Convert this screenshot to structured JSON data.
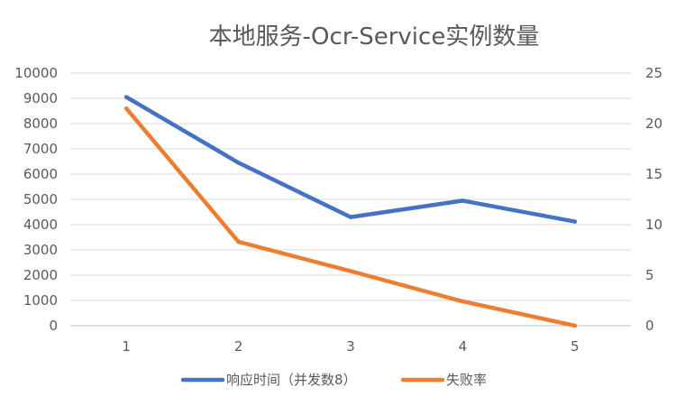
{
  "chart_data": {
    "type": "line",
    "title": "本地服务-Ocr-Service实例数量",
    "categories": [
      "1",
      "2",
      "3",
      "4",
      "5"
    ],
    "y_left": {
      "min": 0,
      "max": 10000,
      "step": 1000,
      "ticks": [
        "0",
        "1000",
        "2000",
        "3000",
        "4000",
        "5000",
        "6000",
        "7000",
        "8000",
        "9000",
        "10000"
      ]
    },
    "y_right": {
      "min": 0,
      "max": 25,
      "step": 5,
      "ticks": [
        "0",
        "5",
        "10",
        "15",
        "20",
        "25"
      ]
    },
    "series": [
      {
        "name": "响应时间（并发数8）",
        "axis": "left",
        "color": "#4472C4",
        "values": [
          9050,
          6450,
          4300,
          4950,
          4120
        ]
      },
      {
        "name": "失败率",
        "axis": "right",
        "color": "#ED7D31",
        "values": [
          21.5,
          8.3,
          5.4,
          2.4,
          0
        ]
      }
    ],
    "gridlines": true,
    "legend_position": "bottom"
  }
}
